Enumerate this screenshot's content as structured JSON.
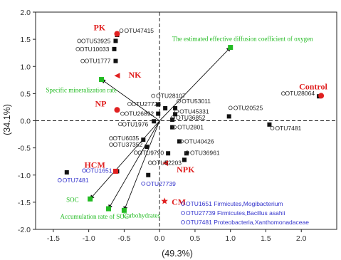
{
  "chart_data": {
    "type": "scatter",
    "xlabel": "(49.3%)",
    "ylabel": "(34.1%)",
    "xlim": [
      -1.75,
      2.5
    ],
    "ylim": [
      -2.0,
      2.0
    ],
    "xticks": [
      "-1.5",
      "-1.0",
      "-0.5",
      "0.0",
      "0.5",
      "1.0",
      "1.5",
      "2.0"
    ],
    "yticks": [
      "-2.0",
      "-1.5",
      "-1.0",
      "-0.5",
      "0.0",
      "0.5",
      "1.0",
      "1.5",
      "2.0"
    ],
    "reference_lines": "dashed lines at x=0 and y=0",
    "series": [
      {
        "kind": "otu",
        "marker": "black-square",
        "points": [
          {
            "label": "OTU47415",
            "x": -0.6,
            "y": 1.58
          },
          {
            "label": "OTU53925",
            "x": -0.62,
            "y": 1.47
          },
          {
            "label": "OTU10033",
            "x": -0.64,
            "y": 1.32
          },
          {
            "label": "OTU1777",
            "x": -0.62,
            "y": 1.1
          },
          {
            "label": "OTU28107",
            "x": -0.02,
            "y": 0.3
          },
          {
            "label": "OTU27728",
            "x": 0.08,
            "y": 0.23
          },
          {
            "label": "OTU26892",
            "x": -0.02,
            "y": 0.13
          },
          {
            "label": "OTU53011",
            "x": 0.22,
            "y": 0.23
          },
          {
            "label": "OTU45331",
            "x": 0.22,
            "y": 0.12
          },
          {
            "label": "OTU36852",
            "x": 0.18,
            "y": 0.02
          },
          {
            "label": "OTU1976",
            "x": -0.08,
            "y": -0.01
          },
          {
            "label": "OTU2801",
            "x": 0.18,
            "y": -0.12
          },
          {
            "label": "OTU20525",
            "x": 0.98,
            "y": 0.08
          },
          {
            "label": "OTU28064",
            "x": 2.25,
            "y": 0.45
          },
          {
            "label": "OTU7481",
            "x": 1.55,
            "y": -0.07
          },
          {
            "label": "OTU6035",
            "x": -0.23,
            "y": -0.35
          },
          {
            "label": "OTU37352",
            "x": -0.18,
            "y": -0.48
          },
          {
            "label": "OTU40426",
            "x": 0.28,
            "y": -0.38
          },
          {
            "label": "OTU9790",
            "x": 0.12,
            "y": -0.6
          },
          {
            "label": "OTU36961",
            "x": 0.38,
            "y": -0.6
          },
          {
            "label": "OTU52203",
            "x": 0.35,
            "y": -0.72
          },
          {
            "label": "OTU27739",
            "x": -0.16,
            "y": -1.0
          },
          {
            "label": "OTU1651",
            "x": -0.6,
            "y": -0.93
          },
          {
            "label": "OTU7481",
            "x": -1.31,
            "y": -0.95
          }
        ]
      },
      {
        "kind": "environmental",
        "marker": "green-square-with-arrow",
        "points": [
          {
            "label": "The estimated effective diffusion coefficient of oxygen",
            "x": 1.0,
            "y": 1.35
          },
          {
            "label": "Specific mineralization rate",
            "x": -0.82,
            "y": 0.76
          },
          {
            "label": "SOC",
            "x": -0.98,
            "y": -1.44
          },
          {
            "label": "Accumulation rate of SOC",
            "x": -0.72,
            "y": -1.62
          },
          {
            "label": "Carbohydrates",
            "x": -0.5,
            "y": -1.65
          }
        ]
      },
      {
        "kind": "treatment",
        "points": [
          {
            "label": "PK",
            "marker": "circle",
            "x": -0.6,
            "y": 1.6
          },
          {
            "label": "NK",
            "marker": "triangle",
            "x": -0.6,
            "y": 0.83
          },
          {
            "label": "NP",
            "marker": "circle",
            "x": -0.6,
            "y": 0.2
          },
          {
            "label": "HCM",
            "marker": "square",
            "x": -0.62,
            "y": -0.93
          },
          {
            "label": "NPK",
            "marker": "triangle",
            "x": 0.08,
            "y": -0.78
          },
          {
            "label": "CM",
            "marker": "star",
            "x": 0.07,
            "y": -1.48
          },
          {
            "label": "Control",
            "marker": "circle",
            "x": 2.28,
            "y": 0.46
          }
        ]
      }
    ],
    "legend_notes": [
      "OTU1651 Firmicutes,Mogibacterium",
      "OTU27739 Firmicutes,Bacillus asahii",
      "OTU7481 Proteobacteria,Xanthomonadaceae"
    ],
    "colors": {
      "env": "#22bb22",
      "treatment": "#e02020",
      "otu": "#111111",
      "highlight_otu": "#3333cc"
    }
  }
}
